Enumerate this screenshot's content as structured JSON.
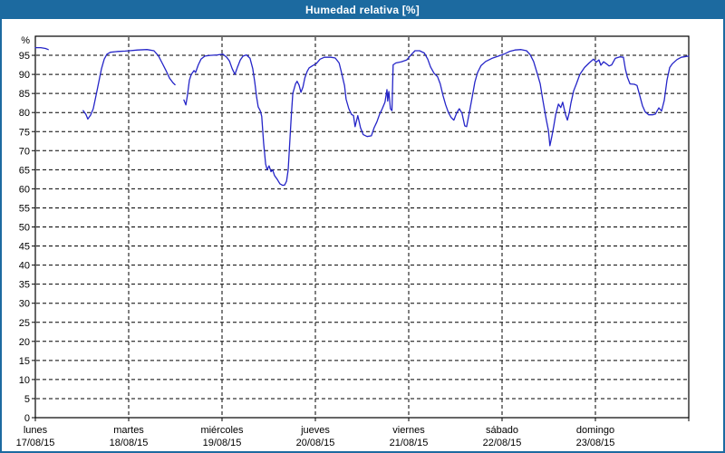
{
  "chart_data": {
    "type": "line",
    "title": "Humedad relativa [%]",
    "y_unit": "%",
    "ylim": [
      0,
      100
    ],
    "y_tick_step": 5,
    "y_tick_max_label": 95,
    "grid": true,
    "x_hours_per_day": 24,
    "x_total_hours": 168,
    "x_categories": [
      {
        "day": "lunes",
        "date": "17/08/15"
      },
      {
        "day": "martes",
        "date": "18/08/15"
      },
      {
        "day": "miércoles",
        "date": "19/08/15"
      },
      {
        "day": "jueves",
        "date": "20/08/15"
      },
      {
        "day": "viernes",
        "date": "21/08/15"
      },
      {
        "day": "sábado",
        "date": "22/08/15"
      },
      {
        "day": "domingo",
        "date": "23/08/15"
      }
    ],
    "colors": {
      "line": "#2525c8",
      "grid": "#000000",
      "axis": "#000000",
      "titlebar_bg": "#1c6aa0",
      "titlebar_text": "#ffffff",
      "background": "#ffffff"
    },
    "series": [
      {
        "name": "Humedad relativa",
        "points": [
          [
            0,
            97
          ],
          [
            1.4,
            97
          ],
          [
            2.6,
            96.8
          ],
          [
            3.3,
            96.5
          ],
          null,
          [
            12.3,
            80.5
          ],
          [
            13,
            79.5
          ],
          [
            13.5,
            78.3
          ],
          [
            14.2,
            79.3
          ],
          [
            14.9,
            81
          ],
          [
            15.6,
            84.5
          ],
          [
            16.3,
            88
          ],
          [
            17,
            91.5
          ],
          [
            17.7,
            94
          ],
          [
            18.4,
            95.3
          ],
          [
            19.3,
            95.8
          ],
          [
            21.2,
            96
          ],
          [
            23.1,
            96.1
          ],
          [
            24.2,
            96.2
          ],
          [
            26.3,
            96.4
          ],
          [
            28.7,
            96.5
          ],
          [
            30.5,
            96.2
          ],
          [
            31.7,
            94.8
          ],
          [
            32.6,
            93
          ],
          [
            33.6,
            91
          ],
          [
            34.5,
            89
          ],
          [
            35.4,
            87.8
          ],
          [
            35.9,
            87.3
          ],
          null,
          [
            38.2,
            83.3
          ],
          [
            38.7,
            82
          ],
          [
            39.1,
            84.5
          ],
          [
            39.6,
            88.5
          ],
          [
            40.1,
            90
          ],
          [
            40.8,
            91
          ],
          [
            41.2,
            90.5
          ],
          [
            41.9,
            92.5
          ],
          [
            42.6,
            94
          ],
          [
            43.6,
            94.8
          ],
          [
            45,
            95
          ],
          [
            46.8,
            95.1
          ],
          [
            48.2,
            95.3
          ],
          [
            49.2,
            94.5
          ],
          [
            49.9,
            93.5
          ],
          [
            50.6,
            91.5
          ],
          [
            51.3,
            90
          ],
          [
            52,
            92
          ],
          [
            52.7,
            93.8
          ],
          [
            53.4,
            94.8
          ],
          [
            54.3,
            95.1
          ],
          [
            55.2,
            94.2
          ],
          [
            55.9,
            91.5
          ],
          [
            56.4,
            88
          ],
          [
            56.9,
            84
          ],
          [
            57.3,
            81.5
          ],
          [
            57.8,
            80.5
          ],
          [
            58.2,
            79
          ],
          [
            58.7,
            72
          ],
          [
            59.2,
            66.5
          ],
          [
            59.6,
            65
          ],
          [
            60.1,
            66
          ],
          [
            60.6,
            64.5
          ],
          [
            61,
            65
          ],
          [
            61.5,
            63.5
          ],
          [
            62.2,
            62.5
          ],
          [
            62.9,
            61.3
          ],
          [
            63.6,
            60.9
          ],
          [
            64.1,
            61
          ],
          [
            64.6,
            62
          ],
          [
            65,
            65
          ],
          [
            65.4,
            72
          ],
          [
            65.8,
            79
          ],
          [
            66.2,
            85
          ],
          [
            66.9,
            87.5
          ],
          [
            67.3,
            88.2
          ],
          [
            67.8,
            87.2
          ],
          [
            68.3,
            85.3
          ],
          [
            68.8,
            86.7
          ],
          [
            69.3,
            89.1
          ],
          [
            69.9,
            90.8
          ],
          [
            70.4,
            91.7
          ],
          [
            71.3,
            92.3
          ],
          [
            72.2,
            92.8
          ],
          [
            73.2,
            94
          ],
          [
            74.3,
            94.5
          ],
          [
            76,
            94.5
          ],
          [
            77.1,
            94.3
          ],
          [
            78.1,
            93
          ],
          [
            78.7,
            90.5
          ],
          [
            79.5,
            87
          ],
          [
            79.9,
            83.5
          ],
          [
            80.6,
            81
          ],
          [
            81.3,
            79.5
          ],
          [
            81.8,
            79.2
          ],
          [
            82.2,
            76.3
          ],
          [
            82.9,
            79.2
          ],
          [
            83.6,
            76
          ],
          [
            84.3,
            74.2
          ],
          [
            85.3,
            73.7
          ],
          [
            86.4,
            73.9
          ],
          [
            87.1,
            76
          ],
          [
            87.8,
            77.5
          ],
          [
            88.5,
            79.5
          ],
          [
            89.2,
            81
          ],
          [
            89.9,
            82.7
          ],
          [
            90.4,
            86
          ],
          [
            90.6,
            83
          ],
          [
            90.9,
            85.5
          ],
          [
            91.3,
            81
          ],
          [
            91.7,
            80.5
          ],
          [
            92,
            92.5
          ],
          [
            92.7,
            93
          ],
          [
            94.1,
            93.3
          ],
          [
            95.5,
            93.8
          ],
          [
            96.5,
            95
          ],
          [
            97.6,
            96.2
          ],
          [
            98.8,
            96.2
          ],
          [
            100,
            95.6
          ],
          [
            100.9,
            94
          ],
          [
            101.6,
            92
          ],
          [
            102.5,
            90.3
          ],
          [
            103.4,
            89.4
          ],
          [
            104.1,
            87.5
          ],
          [
            104.8,
            84.5
          ],
          [
            105.5,
            82
          ],
          [
            106.2,
            80
          ],
          [
            106.9,
            78.7
          ],
          [
            107.6,
            78
          ],
          [
            108.3,
            79.8
          ],
          [
            109,
            81
          ],
          [
            109.7,
            79.8
          ],
          [
            110.4,
            76.5
          ],
          [
            110.9,
            76.3
          ],
          [
            111.6,
            80
          ],
          [
            112.3,
            84
          ],
          [
            113,
            88
          ],
          [
            113.7,
            90.5
          ],
          [
            114.6,
            92.3
          ],
          [
            115.8,
            93.4
          ],
          [
            117.4,
            94.2
          ],
          [
            119.1,
            94.8
          ],
          [
            120.5,
            95.3
          ],
          [
            121.9,
            96
          ],
          [
            123.3,
            96.4
          ],
          [
            124.9,
            96.5
          ],
          [
            126.3,
            96.2
          ],
          [
            127.2,
            95.2
          ],
          [
            128.1,
            93.4
          ],
          [
            129.1,
            90
          ],
          [
            129.8,
            87.5
          ],
          [
            130.4,
            83.8
          ],
          [
            130.9,
            80.8
          ],
          [
            131.4,
            78
          ],
          [
            131.9,
            75.4
          ],
          [
            132.3,
            71.3
          ],
          [
            132.8,
            73.7
          ],
          [
            133.3,
            76.5
          ],
          [
            133.8,
            79.5
          ],
          [
            134.5,
            82.2
          ],
          [
            135.1,
            81.3
          ],
          [
            135.6,
            82.7
          ],
          [
            136.3,
            79.5
          ],
          [
            136.8,
            78
          ],
          [
            137.3,
            80
          ],
          [
            137.7,
            82.5
          ],
          [
            138.4,
            85.7
          ],
          [
            139.1,
            87.5
          ],
          [
            140,
            90
          ],
          [
            141.2,
            91.8
          ],
          [
            142.4,
            93
          ],
          [
            143.5,
            94
          ],
          [
            144.2,
            93.2
          ],
          [
            144.9,
            93.8
          ],
          [
            145.4,
            92.4
          ],
          [
            146.1,
            93.3
          ],
          [
            146.8,
            92.8
          ],
          [
            147.5,
            92.2
          ],
          [
            148.2,
            92.5
          ],
          [
            149.1,
            94.2
          ],
          [
            150.3,
            94.6
          ],
          [
            151.2,
            94.5
          ],
          [
            151.7,
            91.5
          ],
          [
            152.2,
            89.3
          ],
          [
            152.9,
            87.5
          ],
          [
            154,
            87.4
          ],
          [
            154.7,
            87.1
          ],
          [
            155.4,
            84.5
          ],
          [
            156.1,
            81.8
          ],
          [
            156.8,
            80.2
          ],
          [
            157.7,
            79.4
          ],
          [
            158.7,
            79.4
          ],
          [
            159.4,
            79.6
          ],
          [
            160.3,
            81.2
          ],
          [
            161,
            80.4
          ],
          [
            161.7,
            83.2
          ],
          [
            162.4,
            88.5
          ],
          [
            163.1,
            91.8
          ],
          [
            163.8,
            92.8
          ],
          [
            165,
            93.9
          ],
          [
            166.1,
            94.5
          ],
          [
            167.3,
            94.7
          ],
          [
            168,
            94.8
          ]
        ]
      }
    ]
  }
}
